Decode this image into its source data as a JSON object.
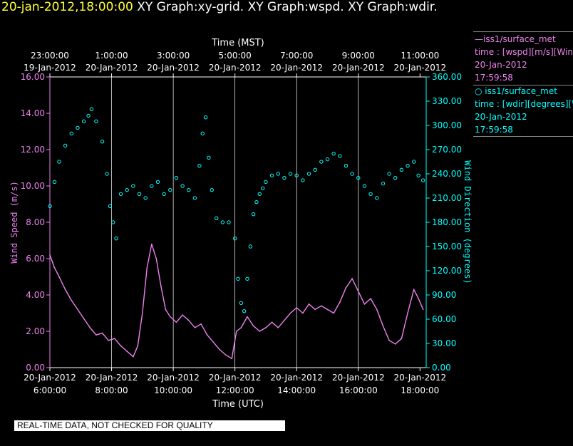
{
  "header": {
    "timestamp": "20-jan-2012,18:00:00",
    "graphs": "XY Graph:xy-grid.  XY Graph:wspd.  XY Graph:wdir."
  },
  "legend": {
    "wspd": {
      "name": "iss1/surface_met",
      "var": "time : [wspd][m/s][Wind",
      "date": "20-Jan-2012",
      "time": "17:59:58"
    },
    "wdir": {
      "name": "iss1/surface_met",
      "var": "time : [wdir][degrees][W",
      "date": "20-Jan-2012",
      "time": "17:59:58"
    }
  },
  "banner": "REAL-TIME DATA, NOT CHECKED FOR QUALITY",
  "colors": {
    "wspd": "#ee82ee",
    "wdir": "#00ffff",
    "axis": "#ffffff",
    "grid": "#ffffff"
  },
  "chart_data": {
    "type": "line",
    "x_top_label": "Time (MST)",
    "x_bottom_label": "Time (UTC)",
    "y_left_label": "Wind Speed (m/s)",
    "y_right_label": "Wind Direction (degrees)",
    "x_utc_range": [
      6,
      18.2
    ],
    "y_left_range": [
      0,
      16
    ],
    "y_right_range": [
      0,
      360
    ],
    "top_ticks": [
      {
        "hour": 6,
        "time": "23:00:00",
        "date": "19-Jan-2012"
      },
      {
        "hour": 8,
        "time": "1:00:00",
        "date": "20-Jan-2012"
      },
      {
        "hour": 10,
        "time": "3:00:00",
        "date": "20-Jan-2012"
      },
      {
        "hour": 12,
        "time": "5:00:00",
        "date": "20-Jan-2012"
      },
      {
        "hour": 14,
        "time": "7:00:00",
        "date": "20-Jan-2012"
      },
      {
        "hour": 16,
        "time": "9:00:00",
        "date": "20-Jan-2012"
      },
      {
        "hour": 18,
        "time": "11:00:00",
        "date": "20-Jan-2012"
      }
    ],
    "bottom_ticks": [
      {
        "hour": 6,
        "date": "20-Jan-2012",
        "time": "6:00:00"
      },
      {
        "hour": 8,
        "date": "20-Jan-2012",
        "time": "8:00:00"
      },
      {
        "hour": 10,
        "date": "20-Jan-2012",
        "time": "10:00:00"
      },
      {
        "hour": 12,
        "date": "20-Jan-2012",
        "time": "12:00:00"
      },
      {
        "hour": 14,
        "date": "20-Jan-2012",
        "time": "14:00:00"
      },
      {
        "hour": 16,
        "date": "20-Jan-2012",
        "time": "16:00:00"
      },
      {
        "hour": 18,
        "date": "20-Jan-2012",
        "time": "18:00:00"
      }
    ],
    "y_left_ticks": [
      "0.00",
      "2.00",
      "4.00",
      "6.00",
      "8.00",
      "10.00",
      "12.00",
      "14.00",
      "16.00"
    ],
    "y_right_ticks": [
      "0.00",
      "30.00",
      "60.00",
      "90.00",
      "120.00",
      "150.00",
      "180.00",
      "210.00",
      "240.00",
      "270.00",
      "300.00",
      "330.00",
      "360.00"
    ],
    "grid_hours": [
      8,
      10,
      12,
      14,
      16
    ],
    "series": [
      {
        "name": "wspd",
        "axis": "left",
        "style": "line",
        "points": [
          [
            6.0,
            6.2
          ],
          [
            6.15,
            5.5
          ],
          [
            6.3,
            5.0
          ],
          [
            6.5,
            4.3
          ],
          [
            6.7,
            3.7
          ],
          [
            6.9,
            3.2
          ],
          [
            7.1,
            2.7
          ],
          [
            7.3,
            2.2
          ],
          [
            7.5,
            1.8
          ],
          [
            7.7,
            1.9
          ],
          [
            7.9,
            1.5
          ],
          [
            8.1,
            1.6
          ],
          [
            8.3,
            1.2
          ],
          [
            8.5,
            0.9
          ],
          [
            8.7,
            0.6
          ],
          [
            8.85,
            1.2
          ],
          [
            9.0,
            3.0
          ],
          [
            9.15,
            5.5
          ],
          [
            9.3,
            6.8
          ],
          [
            9.45,
            6.0
          ],
          [
            9.6,
            4.5
          ],
          [
            9.75,
            3.2
          ],
          [
            9.9,
            2.8
          ],
          [
            10.1,
            2.5
          ],
          [
            10.3,
            2.9
          ],
          [
            10.5,
            2.6
          ],
          [
            10.7,
            2.2
          ],
          [
            10.9,
            2.4
          ],
          [
            11.1,
            1.8
          ],
          [
            11.3,
            1.4
          ],
          [
            11.5,
            1.0
          ],
          [
            11.7,
            0.7
          ],
          [
            11.9,
            0.5
          ],
          [
            12.05,
            2.0
          ],
          [
            12.2,
            2.2
          ],
          [
            12.4,
            2.8
          ],
          [
            12.6,
            2.3
          ],
          [
            12.8,
            2.0
          ],
          [
            13.0,
            2.2
          ],
          [
            13.2,
            2.5
          ],
          [
            13.4,
            2.2
          ],
          [
            13.6,
            2.6
          ],
          [
            13.8,
            3.0
          ],
          [
            14.0,
            3.3
          ],
          [
            14.2,
            3.0
          ],
          [
            14.4,
            3.5
          ],
          [
            14.6,
            3.2
          ],
          [
            14.8,
            3.4
          ],
          [
            15.0,
            3.2
          ],
          [
            15.2,
            3.0
          ],
          [
            15.4,
            3.6
          ],
          [
            15.6,
            4.4
          ],
          [
            15.8,
            4.9
          ],
          [
            16.0,
            4.2
          ],
          [
            16.2,
            3.5
          ],
          [
            16.4,
            3.8
          ],
          [
            16.6,
            3.2
          ],
          [
            16.8,
            2.3
          ],
          [
            17.0,
            1.5
          ],
          [
            17.2,
            1.3
          ],
          [
            17.4,
            1.6
          ],
          [
            17.6,
            3.0
          ],
          [
            17.8,
            4.3
          ],
          [
            17.95,
            3.8
          ],
          [
            18.1,
            3.2
          ]
        ]
      },
      {
        "name": "wdir",
        "axis": "right",
        "style": "scatter",
        "points": [
          [
            6.0,
            200
          ],
          [
            6.15,
            230
          ],
          [
            6.3,
            255
          ],
          [
            6.5,
            275
          ],
          [
            6.7,
            290
          ],
          [
            6.9,
            297
          ],
          [
            7.1,
            305
          ],
          [
            7.25,
            312
          ],
          [
            7.35,
            320
          ],
          [
            7.5,
            305
          ],
          [
            7.7,
            280
          ],
          [
            7.85,
            240
          ],
          [
            7.95,
            200
          ],
          [
            8.05,
            180
          ],
          [
            8.15,
            160
          ],
          [
            8.3,
            215
          ],
          [
            8.5,
            220
          ],
          [
            8.7,
            225
          ],
          [
            8.9,
            215
          ],
          [
            9.1,
            210
          ],
          [
            9.3,
            225
          ],
          [
            9.5,
            230
          ],
          [
            9.7,
            215
          ],
          [
            9.9,
            220
          ],
          [
            10.1,
            235
          ],
          [
            10.3,
            225
          ],
          [
            10.5,
            220
          ],
          [
            10.7,
            210
          ],
          [
            10.85,
            250
          ],
          [
            10.95,
            290
          ],
          [
            11.05,
            310
          ],
          [
            11.15,
            260
          ],
          [
            11.25,
            220
          ],
          [
            11.4,
            185
          ],
          [
            11.6,
            180
          ],
          [
            11.8,
            180
          ],
          [
            12.0,
            160
          ],
          [
            12.1,
            110
          ],
          [
            12.2,
            80
          ],
          [
            12.3,
            70
          ],
          [
            12.4,
            110
          ],
          [
            12.5,
            150
          ],
          [
            12.6,
            190
          ],
          [
            12.7,
            205
          ],
          [
            12.8,
            215
          ],
          [
            12.9,
            222
          ],
          [
            13.0,
            230
          ],
          [
            13.2,
            238
          ],
          [
            13.4,
            240
          ],
          [
            13.6,
            235
          ],
          [
            13.8,
            240
          ],
          [
            14.0,
            238
          ],
          [
            14.2,
            232
          ],
          [
            14.4,
            240
          ],
          [
            14.6,
            245
          ],
          [
            14.8,
            255
          ],
          [
            15.0,
            258
          ],
          [
            15.2,
            265
          ],
          [
            15.4,
            262
          ],
          [
            15.6,
            250
          ],
          [
            15.8,
            240
          ],
          [
            16.0,
            235
          ],
          [
            16.2,
            225
          ],
          [
            16.4,
            215
          ],
          [
            16.6,
            210
          ],
          [
            16.8,
            228
          ],
          [
            17.0,
            240
          ],
          [
            17.2,
            235
          ],
          [
            17.4,
            245
          ],
          [
            17.6,
            250
          ],
          [
            17.8,
            255
          ],
          [
            17.95,
            238
          ],
          [
            18.1,
            232
          ]
        ]
      }
    ]
  }
}
